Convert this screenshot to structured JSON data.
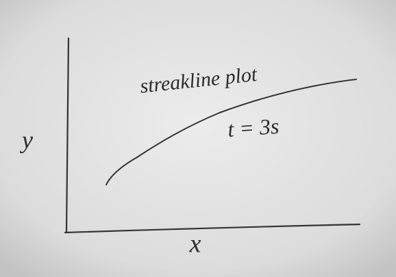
{
  "title": "streakline plot",
  "annotation": "t = 3s",
  "axes": {
    "x_label": "x",
    "y_label": "y"
  }
}
